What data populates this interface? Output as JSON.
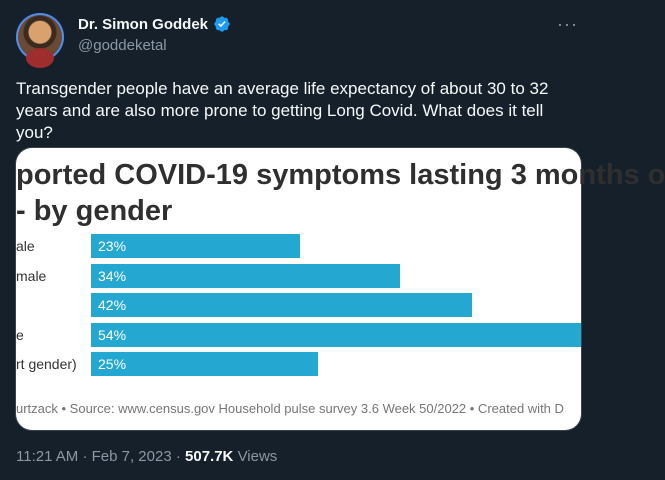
{
  "author": {
    "display_name": "Dr. Simon Goddek",
    "handle": "@goddeketal",
    "verified": true,
    "avatar_icon": "avatar-photo"
  },
  "menu_icon": "more-horizontal-icon",
  "tweet_text": "Transgender people have an average life expectancy of about 30 to 32 years and are also more prone to getting Long Covid. What does it tell you?",
  "media": {
    "title_line1": "ported COVID-19 symptoms lasting 3 months o",
    "title_line2": "- by gender",
    "bar_color": "#24a7d1",
    "source": "urtzack • Source: www.census.gov Household pulse survey 3.6 Week 50/2022 • Created with D"
  },
  "chart_data": {
    "type": "bar",
    "orientation": "horizontal",
    "categories": [
      "ale",
      "male",
      "",
      "e",
      "rt gender)"
    ],
    "values": [
      23,
      34,
      42,
      54,
      25
    ],
    "value_labels": [
      "23%",
      "34%",
      "42%",
      "54%",
      "25%"
    ],
    "title": "ported COVID-19 symptoms lasting 3 months o - by gender",
    "xlim": [
      0,
      54
    ],
    "grid": false
  },
  "footer": {
    "time": "11:21 AM",
    "separator": "·",
    "date": "Feb 7, 2023",
    "views_count": "507.7K",
    "views_label": "Views"
  }
}
